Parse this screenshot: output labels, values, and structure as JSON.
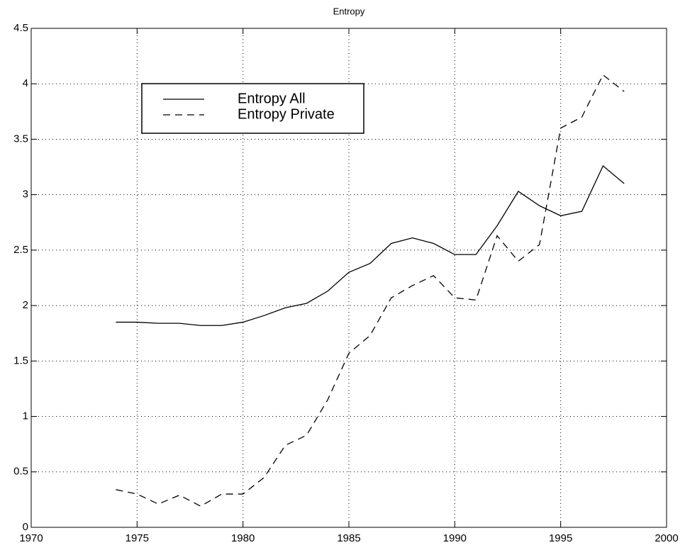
{
  "chart_data": {
    "type": "line",
    "title": "Entropy",
    "x": [
      1974,
      1975,
      1976,
      1977,
      1978,
      1979,
      1980,
      1981,
      1982,
      1983,
      1984,
      1985,
      1986,
      1987,
      1988,
      1989,
      1990,
      1991,
      1992,
      1993,
      1994,
      1995,
      1996,
      1997,
      1998
    ],
    "series": [
      {
        "name": "Entropy All",
        "color": "#000000",
        "style": "solid",
        "values": [
          1.85,
          1.85,
          1.84,
          1.84,
          1.82,
          1.82,
          1.85,
          1.91,
          1.98,
          2.02,
          2.13,
          2.3,
          2.38,
          2.56,
          2.61,
          2.56,
          2.46,
          2.46,
          2.72,
          3.03,
          2.9,
          2.81,
          2.85,
          3.26,
          3.1
        ]
      },
      {
        "name": "Entropy Private",
        "color": "#000000",
        "style": "dashed",
        "values": [
          0.34,
          0.3,
          0.21,
          0.29,
          0.19,
          0.3,
          0.3,
          0.45,
          0.74,
          0.83,
          1.15,
          1.57,
          1.73,
          2.07,
          2.18,
          2.27,
          2.07,
          2.05,
          2.63,
          2.4,
          2.55,
          3.6,
          3.7,
          4.08,
          3.93
        ]
      }
    ],
    "xlim": [
      1970,
      2000
    ],
    "xticks": [
      1970,
      1975,
      1980,
      1985,
      1990,
      1995,
      2000
    ],
    "ylim": [
      0,
      4.5
    ],
    "yticks": [
      0,
      0.5,
      1,
      1.5,
      2,
      2.5,
      3,
      3.5,
      4,
      4.5
    ],
    "grid": true,
    "legend": "upper left"
  }
}
